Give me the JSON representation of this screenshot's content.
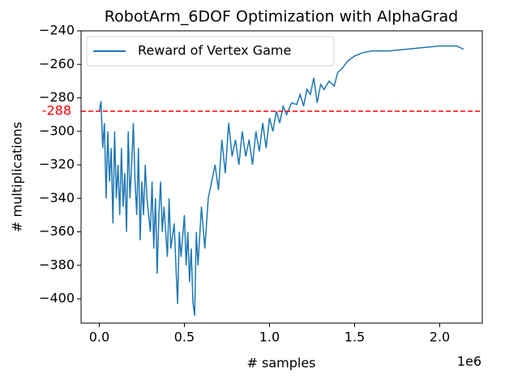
{
  "chart_data": {
    "type": "line",
    "title": "RobotArm_6DOF Optimization with AlphaGrad",
    "xlabel": "# samples",
    "ylabel": "# multiplications",
    "x_offset_label": "1e6",
    "x": [
      0,
      10000,
      20000,
      30000,
      40000,
      50000,
      60000,
      70000,
      80000,
      90000,
      100000,
      110000,
      120000,
      130000,
      140000,
      150000,
      160000,
      170000,
      180000,
      190000,
      200000,
      210000,
      220000,
      230000,
      240000,
      250000,
      260000,
      270000,
      280000,
      300000,
      310000,
      320000,
      330000,
      340000,
      350000,
      360000,
      370000,
      380000,
      400000,
      410000,
      420000,
      440000,
      450000,
      460000,
      470000,
      480000,
      500000,
      510000,
      520000,
      530000,
      540000,
      550000,
      560000,
      570000,
      580000,
      600000,
      620000,
      640000,
      660000,
      680000,
      700000,
      720000,
      740000,
      760000,
      780000,
      800000,
      820000,
      840000,
      860000,
      880000,
      900000,
      920000,
      940000,
      960000,
      980000,
      1000000,
      1020000,
      1040000,
      1060000,
      1080000,
      1100000,
      1130000,
      1160000,
      1180000,
      1200000,
      1220000,
      1240000,
      1260000,
      1280000,
      1300000,
      1320000,
      1350000,
      1380000,
      1400000,
      1430000,
      1460000,
      1500000,
      1550000,
      1600000,
      1700000,
      1800000,
      1900000,
      2000000,
      2100000,
      2140000
    ],
    "series": [
      {
        "name": "Reward of Vertex Game",
        "color": "#1f77b4",
        "values": [
          -288,
          -282,
          -310,
          -295,
          -340,
          -300,
          -330,
          -310,
          -355,
          -300,
          -340,
          -320,
          -350,
          -310,
          -345,
          -325,
          -360,
          -300,
          -340,
          -320,
          -295,
          -330,
          -350,
          -310,
          -365,
          -330,
          -350,
          -320,
          -340,
          -360,
          -330,
          -370,
          -340,
          -385,
          -350,
          -330,
          -360,
          -345,
          -375,
          -340,
          -370,
          -355,
          -380,
          -403,
          -360,
          -375,
          -350,
          -380,
          -360,
          -390,
          -370,
          -402,
          -410,
          -360,
          -380,
          -345,
          -370,
          -340,
          -330,
          -320,
          -335,
          -305,
          -325,
          -295,
          -315,
          -305,
          -320,
          -300,
          -315,
          -305,
          -320,
          -300,
          -312,
          -295,
          -310,
          -292,
          -300,
          -288,
          -295,
          -285,
          -290,
          -283,
          -284,
          -278,
          -285,
          -275,
          -278,
          -268,
          -283,
          -272,
          -275,
          -270,
          -273,
          -265,
          -262,
          -258,
          -255,
          -253,
          -252,
          -252,
          -251,
          -250,
          -249,
          -249,
          -251
        ]
      }
    ],
    "hline": {
      "value": -288,
      "color": "#ff0000"
    },
    "xlim": [
      -107000,
      2250000
    ],
    "xticks": [
      {
        "value": 0,
        "label": "0.0"
      },
      {
        "value": 500000,
        "label": "0.5"
      },
      {
        "value": 1000000,
        "label": "1.0"
      },
      {
        "value": 1500000,
        "label": "1.5"
      },
      {
        "value": 2000000,
        "label": "2.0"
      }
    ],
    "ylim": [
      -414.5,
      -240
    ],
    "yticks": [
      {
        "value": -400,
        "label": "−400"
      },
      {
        "value": -380,
        "label": "−380"
      },
      {
        "value": -360,
        "label": "−360"
      },
      {
        "value": -340,
        "label": "−340"
      },
      {
        "value": -320,
        "label": "−320"
      },
      {
        "value": -300,
        "label": "−300"
      },
      {
        "value": -280,
        "label": "−280"
      },
      {
        "value": -260,
        "label": "−260"
      },
      {
        "value": -240,
        "label": "−240"
      }
    ],
    "legend": "upper left"
  }
}
